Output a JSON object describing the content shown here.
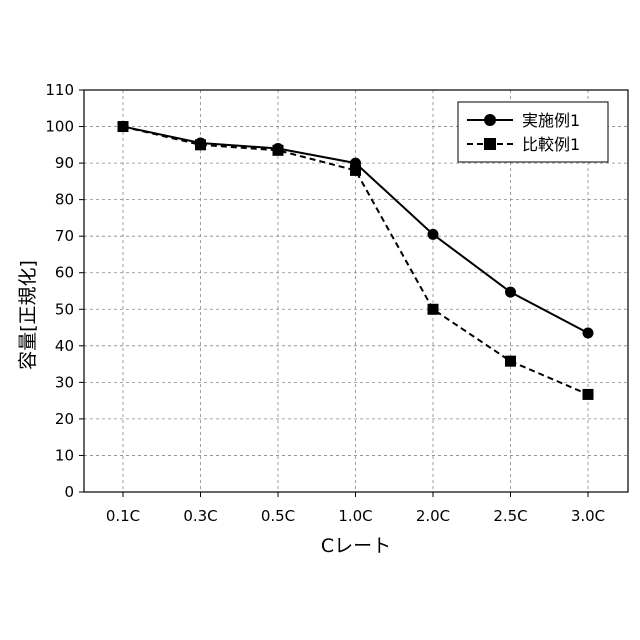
{
  "chart_data": {
    "type": "line",
    "categories": [
      "0.1C",
      "0.3C",
      "0.5C",
      "1.0C",
      "2.0C",
      "2.5C",
      "3.0C"
    ],
    "series": [
      {
        "name": "実施例1",
        "values": [
          100,
          95.5,
          94,
          90,
          70.5,
          54.7,
          43.5
        ],
        "marker": "circle",
        "line": "solid"
      },
      {
        "name": "比較例1",
        "values": [
          100,
          95,
          93.5,
          88,
          50,
          35.8,
          26.7
        ],
        "marker": "square",
        "line": "dashed"
      }
    ],
    "xlabel": "Cレート",
    "ylabel": "容量[正規化]",
    "ylim": [
      0,
      110
    ],
    "yticks": [
      0,
      10,
      20,
      30,
      40,
      50,
      60,
      70,
      80,
      90,
      100,
      110
    ],
    "grid": true,
    "legend": "top-right"
  },
  "colors": {
    "series": "#000000",
    "grid": "#888888"
  }
}
